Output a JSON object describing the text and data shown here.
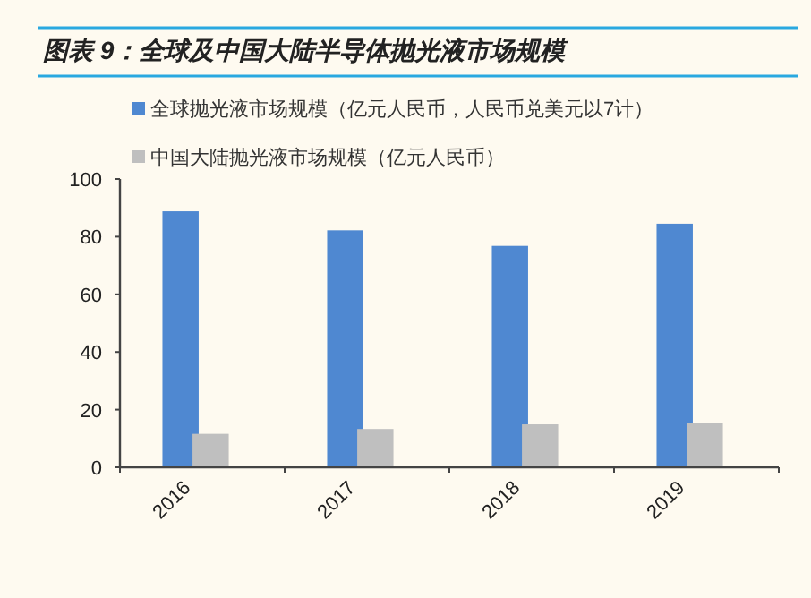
{
  "chart_data": {
    "type": "bar",
    "title": "图表 9：全球及中国大陆半导体抛光液市场规模",
    "categories": [
      "2016",
      "2017",
      "2018",
      "2019"
    ],
    "series": [
      {
        "name": "全球抛光液市场规模（亿元人民币，人民币兑美元以7计）",
        "color": "#4f88d1",
        "values": [
          88.8,
          82.2,
          76.8,
          84.5
        ]
      },
      {
        "name": "中国大陆抛光液市场规模（亿元人民币）",
        "color": "#bfbfbf",
        "values": [
          11.6,
          13.3,
          14.9,
          15.5
        ]
      }
    ],
    "ylim": [
      0,
      100
    ],
    "yticks": [
      0,
      20,
      40,
      60,
      80,
      100
    ],
    "grid": false,
    "legend": "top"
  }
}
